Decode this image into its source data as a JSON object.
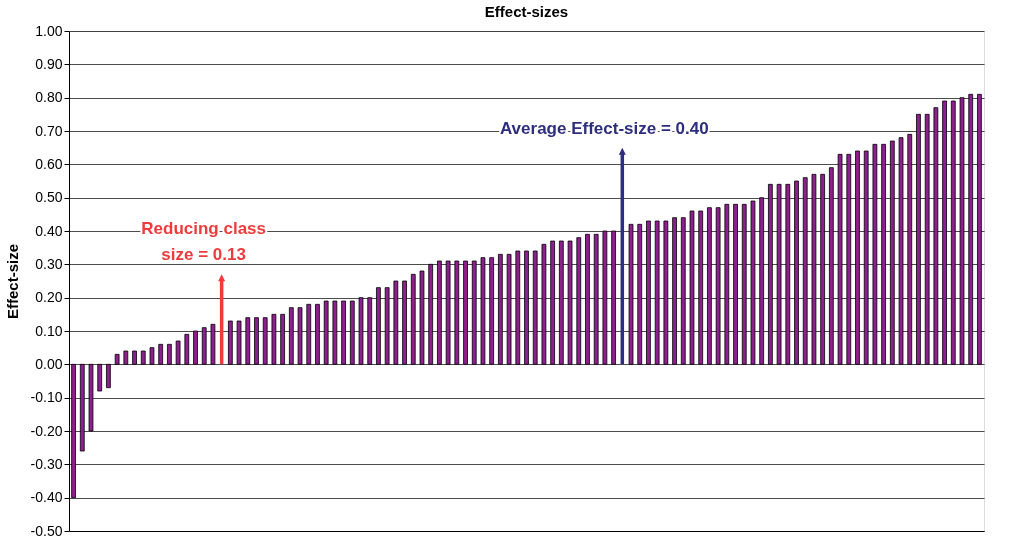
{
  "chart_data": {
    "type": "bar",
    "title": "Effect-sizes",
    "ylabel": "Effect-size",
    "categories": [
      null,
      null,
      null,
      null,
      null,
      null,
      null,
      null,
      null,
      null,
      null,
      null,
      null,
      null,
      null,
      null,
      null,
      null,
      null,
      null,
      null,
      null,
      null,
      null,
      null,
      null,
      null,
      null,
      null,
      null,
      null,
      null,
      null,
      null,
      null,
      null,
      null,
      null,
      null,
      null,
      null,
      null,
      null,
      null,
      null,
      null,
      null,
      null,
      null,
      null,
      null,
      null,
      null,
      null,
      null,
      null,
      null,
      null,
      null,
      null,
      null,
      null,
      null,
      null,
      null,
      null,
      null,
      null,
      null,
      null,
      null,
      null,
      null,
      null,
      null,
      null,
      null,
      null,
      null,
      null,
      null,
      null,
      null,
      null,
      null,
      null,
      null,
      null,
      null,
      null,
      null,
      null,
      null,
      null,
      null,
      null,
      null,
      null,
      null,
      null,
      null,
      null,
      null,
      null,
      null
    ],
    "values": [
      -0.4,
      -0.26,
      -0.2,
      -0.08,
      -0.07,
      0.03,
      0.04,
      0.04,
      0.04,
      0.05,
      0.06,
      0.06,
      0.07,
      0.09,
      0.1,
      0.11,
      0.12,
      null,
      0.13,
      0.13,
      0.14,
      0.14,
      0.14,
      0.15,
      0.15,
      0.17,
      0.17,
      0.18,
      0.18,
      0.19,
      0.19,
      0.19,
      0.19,
      0.2,
      0.2,
      0.23,
      0.23,
      0.25,
      0.25,
      0.27,
      0.28,
      0.3,
      0.31,
      0.31,
      0.31,
      0.31,
      0.31,
      0.32,
      0.32,
      0.33,
      0.33,
      0.34,
      0.34,
      0.34,
      0.36,
      0.37,
      0.37,
      0.37,
      0.38,
      0.39,
      0.39,
      0.4,
      0.4,
      null,
      0.42,
      0.42,
      0.43,
      0.43,
      0.43,
      0.44,
      0.44,
      0.46,
      0.46,
      0.47,
      0.47,
      0.48,
      0.48,
      0.48,
      0.49,
      0.5,
      0.54,
      0.54,
      0.54,
      0.55,
      0.56,
      0.57,
      0.57,
      0.59,
      0.63,
      0.63,
      0.64,
      0.64,
      0.66,
      0.66,
      0.67,
      0.68,
      0.69,
      0.75,
      0.75,
      0.77,
      0.79,
      0.79,
      0.8,
      0.81,
      0.81
    ],
    "color": "#8e1f8e",
    "ylim": [
      -0.5,
      1.0
    ],
    "yticks": [
      {
        "value": -0.5,
        "label": "-0.50"
      },
      {
        "value": -0.4,
        "label": "-0.40"
      },
      {
        "value": -0.3,
        "label": "-0.30"
      },
      {
        "value": -0.2,
        "label": "-0.20"
      },
      {
        "value": -0.1,
        "label": "-0.10"
      },
      {
        "value": 0,
        "label": "0.00"
      },
      {
        "value": 0.1,
        "label": "0.10"
      },
      {
        "value": 0.2,
        "label": "0.20"
      },
      {
        "value": 0.3,
        "label": "0.30"
      },
      {
        "value": 0.4,
        "label": "0.40"
      },
      {
        "value": 0.5,
        "label": "0.50"
      },
      {
        "value": 0.6,
        "label": "0.60"
      },
      {
        "value": 0.7,
        "label": "0.70"
      },
      {
        "value": 0.8,
        "label": "0.80"
      },
      {
        "value": 0.9,
        "label": "0.90"
      },
      {
        "value": 1.0,
        "label": "1.00"
      }
    ],
    "grid": "y",
    "annotations": [
      "Reducing class\nsize = 0.13",
      "Average Effect-size = 0.40"
    ]
  }
}
